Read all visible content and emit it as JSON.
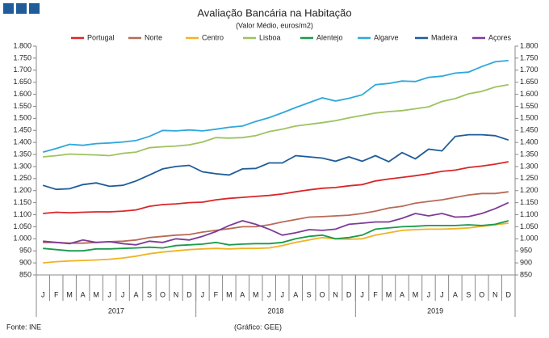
{
  "chart_data": {
    "type": "line",
    "title": "Avaliação Bancária na Habitação",
    "subtitle": "(Valor Médio, euros/m2)",
    "source": "Fonte: INE",
    "credit": "(Gráfico: GEE)",
    "legend": "top",
    "grid": false,
    "categories": [
      "J",
      "F",
      "M",
      "A",
      "M",
      "J",
      "J",
      "A",
      "S",
      "O",
      "N",
      "D",
      "J",
      "F",
      "M",
      "A",
      "M",
      "J",
      "J",
      "A",
      "S",
      "O",
      "N",
      "D",
      "J",
      "F",
      "M",
      "A",
      "M",
      "J",
      "J",
      "A",
      "S",
      "O",
      "N",
      "D"
    ],
    "years": [
      "2017",
      "2018",
      "2019"
    ],
    "ylim": [
      850,
      1800
    ],
    "yticks": [
      850,
      900,
      950,
      {
        "value": 1000,
        "label": "1.000"
      },
      {
        "value": 1050,
        "label": "1.050"
      },
      {
        "value": 1100,
        "label": "1.100"
      },
      {
        "value": 1150,
        "label": "1.150"
      },
      {
        "value": 1200,
        "label": "1.200"
      },
      {
        "value": 1250,
        "label": "1.250"
      },
      {
        "value": 1300,
        "label": "1.300"
      },
      {
        "value": 1350,
        "label": "1.350"
      },
      {
        "value": 1400,
        "label": "1.400"
      },
      {
        "value": 1450,
        "label": "1.450"
      },
      {
        "value": 1500,
        "label": "1.500"
      },
      {
        "value": 1550,
        "label": "1.550"
      },
      {
        "value": 1600,
        "label": "1.600"
      },
      {
        "value": 1650,
        "label": "1.650"
      },
      {
        "value": 1700,
        "label": "1.700"
      },
      {
        "value": 1750,
        "label": "1.750"
      },
      {
        "value": 1800,
        "label": "1.800"
      }
    ],
    "series": [
      {
        "name": "Portugal",
        "color": "#d9262a",
        "values": [
          1105,
          1110,
          1108,
          1110,
          1112,
          1112,
          1115,
          1120,
          1135,
          1142,
          1145,
          1150,
          1152,
          1162,
          1168,
          1172,
          1176,
          1180,
          1186,
          1195,
          1203,
          1210,
          1213,
          1220,
          1225,
          1240,
          1248,
          1255,
          1262,
          1270,
          1280,
          1285,
          1296,
          1302,
          1310,
          1320
        ]
      },
      {
        "name": "Norte",
        "color": "#b86a57",
        "values": [
          985,
          985,
          982,
          982,
          985,
          988,
          990,
          995,
          1005,
          1010,
          1015,
          1018,
          1028,
          1035,
          1042,
          1050,
          1050,
          1058,
          1070,
          1080,
          1090,
          1092,
          1095,
          1098,
          1105,
          1115,
          1128,
          1135,
          1148,
          1155,
          1162,
          1172,
          1182,
          1188,
          1188,
          1195
        ]
      },
      {
        "name": "Centro",
        "color": "#f0b323",
        "values": [
          900,
          905,
          908,
          910,
          912,
          915,
          920,
          928,
          938,
          945,
          950,
          955,
          958,
          960,
          958,
          960,
          960,
          962,
          972,
          985,
          995,
          1005,
          1000,
          998,
          1000,
          1015,
          1025,
          1035,
          1038,
          1040,
          1040,
          1042,
          1045,
          1052,
          1058,
          1065
        ]
      },
      {
        "name": "Lisboa",
        "color": "#9dc35e",
        "values": [
          1340,
          1345,
          1352,
          1350,
          1348,
          1345,
          1355,
          1360,
          1378,
          1382,
          1385,
          1390,
          1402,
          1420,
          1418,
          1420,
          1428,
          1445,
          1455,
          1468,
          1475,
          1482,
          1490,
          1502,
          1512,
          1522,
          1528,
          1532,
          1540,
          1548,
          1570,
          1582,
          1602,
          1612,
          1630,
          1640
        ]
      },
      {
        "name": "Alentejo",
        "color": "#1a9a4a",
        "values": [
          960,
          955,
          950,
          950,
          958,
          958,
          960,
          962,
          965,
          962,
          972,
          975,
          978,
          985,
          975,
          978,
          980,
          980,
          985,
          1000,
          1010,
          1015,
          1000,
          1005,
          1015,
          1040,
          1045,
          1050,
          1052,
          1055,
          1055,
          1055,
          1058,
          1055,
          1060,
          1075
        ]
      },
      {
        "name": "Algarve",
        "color": "#2fa7dc",
        "values": [
          1360,
          1375,
          1392,
          1388,
          1395,
          1398,
          1402,
          1408,
          1425,
          1450,
          1448,
          1452,
          1448,
          1455,
          1463,
          1468,
          1487,
          1503,
          1523,
          1545,
          1565,
          1585,
          1572,
          1583,
          1598,
          1640,
          1645,
          1655,
          1653,
          1670,
          1675,
          1688,
          1692,
          1715,
          1735,
          1740
        ]
      },
      {
        "name": "Madeira",
        "color": "#1f5c99",
        "values": [
          1222,
          1205,
          1208,
          1225,
          1232,
          1218,
          1222,
          1240,
          1265,
          1290,
          1300,
          1305,
          1278,
          1270,
          1265,
          1290,
          1292,
          1315,
          1315,
          1345,
          1340,
          1335,
          1322,
          1340,
          1322,
          1345,
          1320,
          1358,
          1332,
          1372,
          1365,
          1425,
          1432,
          1432,
          1428,
          1410
        ]
      },
      {
        "name": "Açores",
        "color": "#7d3c98",
        "values": [
          990,
          985,
          980,
          995,
          985,
          988,
          980,
          975,
          990,
          985,
          1000,
          995,
          1010,
          1030,
          1055,
          1075,
          1060,
          1040,
          1015,
          1025,
          1038,
          1035,
          1040,
          1060,
          1065,
          1070,
          1070,
          1085,
          1105,
          1095,
          1105,
          1090,
          1092,
          1105,
          1125,
          1150
        ]
      }
    ]
  }
}
